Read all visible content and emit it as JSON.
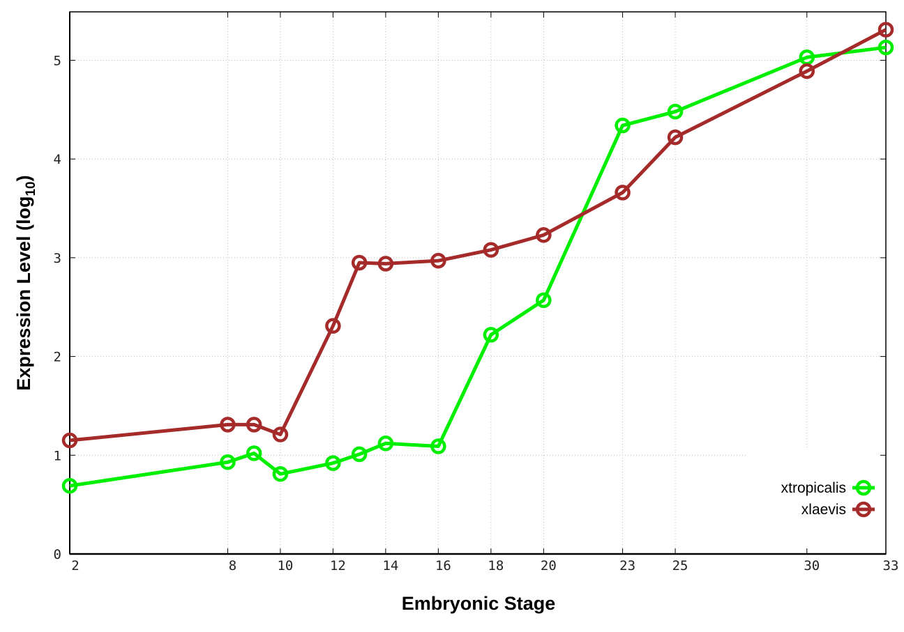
{
  "chart_data": {
    "type": "line",
    "xlabel": "Embryonic Stage",
    "ylabel": "Expression Level (log",
    "ylabel_sub": "10",
    "ylabel_end": ")",
    "xlim": [
      2,
      33
    ],
    "ylim": [
      0,
      5.5
    ],
    "xticks": [
      2,
      8,
      10,
      12,
      14,
      16,
      18,
      20,
      23,
      25,
      30,
      33
    ],
    "yticks": [
      0,
      1,
      2,
      3,
      4,
      5
    ],
    "grid": true,
    "legend_position": "bottom-right",
    "x": [
      2,
      8,
      9,
      10,
      12,
      13,
      14,
      16,
      18,
      20,
      23,
      25,
      30,
      33
    ],
    "series": [
      {
        "name": "xtropicalis",
        "color": "#00ee00",
        "values": [
          0.69,
          0.93,
          1.02,
          0.81,
          0.92,
          1.01,
          1.12,
          1.09,
          2.22,
          2.57,
          4.34,
          4.48,
          5.03,
          5.13
        ]
      },
      {
        "name": "xlaevis",
        "color": "#a52a2a",
        "values": [
          1.15,
          1.31,
          1.31,
          1.21,
          2.31,
          2.95,
          2.94,
          2.97,
          3.08,
          3.23,
          3.66,
          4.22,
          4.89,
          5.31
        ]
      }
    ]
  }
}
